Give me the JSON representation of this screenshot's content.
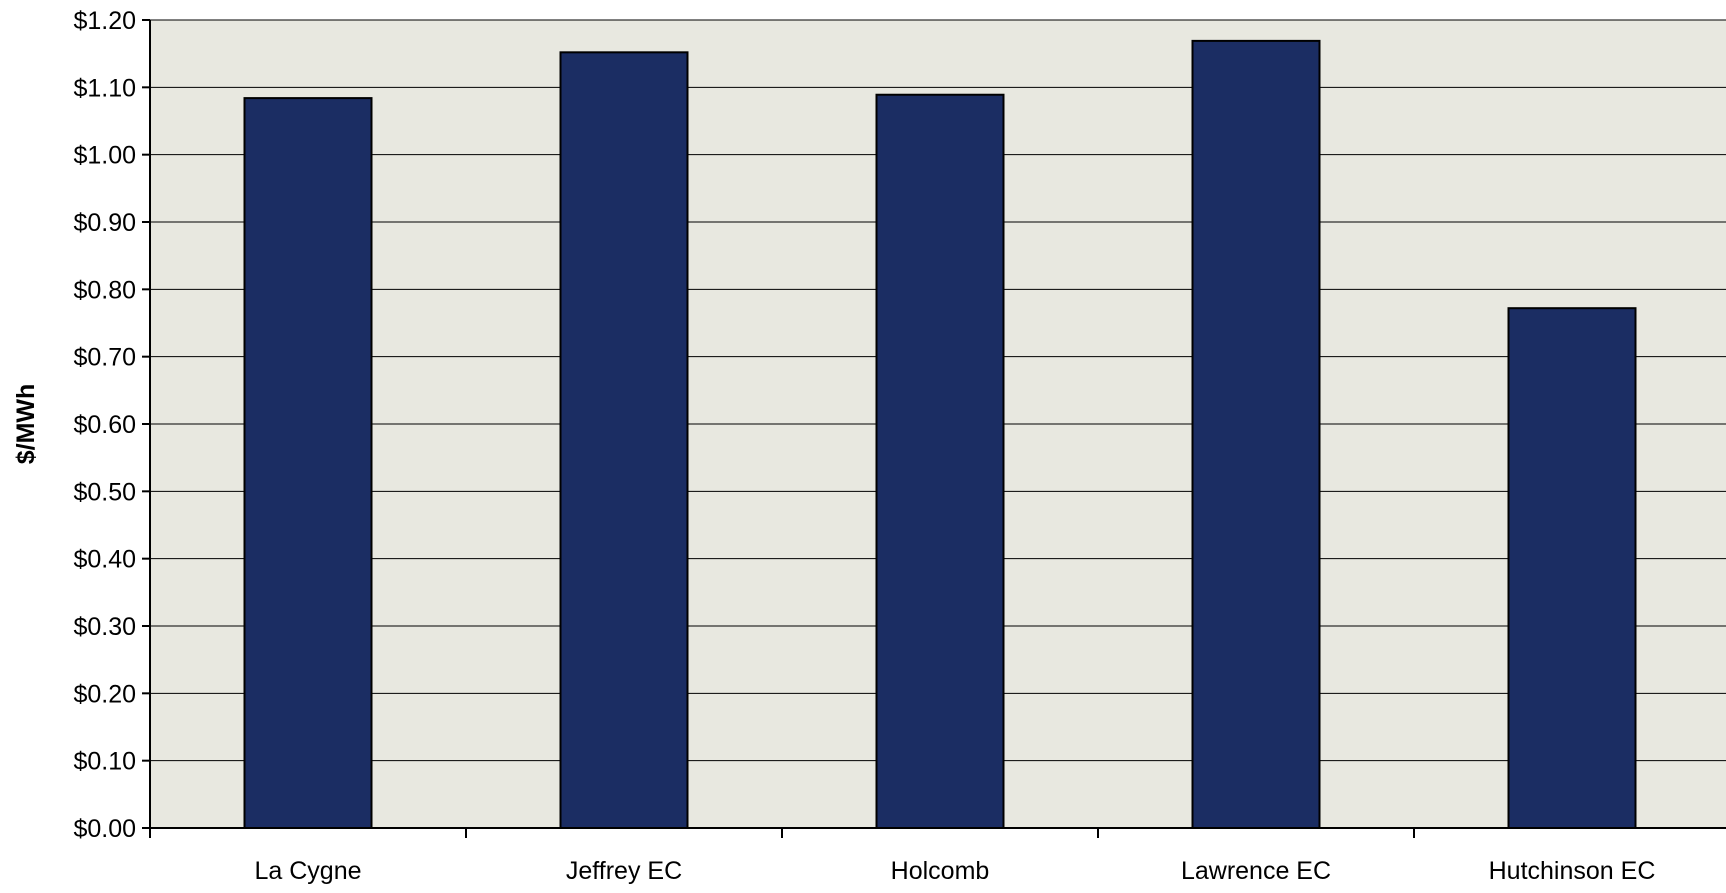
{
  "chart_data": {
    "type": "bar",
    "title": "",
    "xlabel": "",
    "ylabel": "$/MWh",
    "categories": [
      "La Cygne",
      "Jeffrey EC",
      "Holcomb",
      "Lawrence EC",
      "Hutchinson EC"
    ],
    "values": [
      1.084,
      1.152,
      1.089,
      1.169,
      0.772
    ],
    "ylim": [
      0,
      1.2
    ],
    "yticks": [
      0,
      0.1,
      0.2,
      0.3,
      0.4,
      0.5,
      0.6,
      0.7,
      0.8,
      0.9,
      1.0,
      1.1,
      1.2
    ],
    "ytick_labels": [
      "$0.00",
      "$0.10",
      "$0.20",
      "$0.30",
      "$0.40",
      "$0.50",
      "$0.60",
      "$0.70",
      "$0.80",
      "$0.90",
      "$1.00",
      "$1.10",
      "$1.20"
    ],
    "grid": true,
    "legend": "none",
    "colors": {
      "bar_fill": "#1b2d63",
      "bar_stroke": "#000000",
      "plot_background": "#e8e8e0",
      "gridline": "#000000"
    }
  }
}
